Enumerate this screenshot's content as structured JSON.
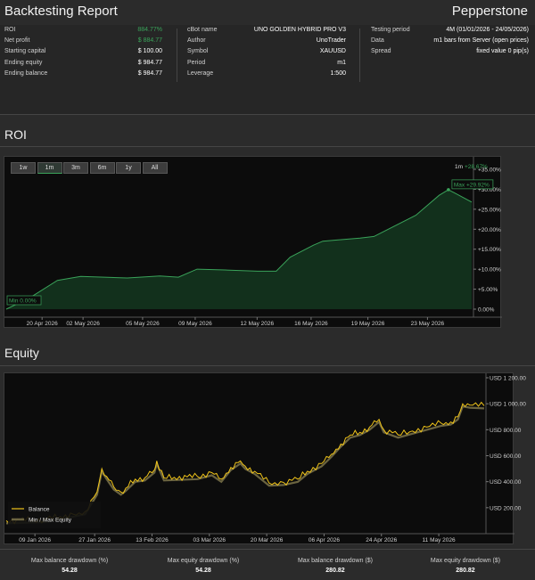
{
  "header": {
    "title": "Backtesting Report",
    "brand": "Pepperstone"
  },
  "stats": {
    "left": [
      {
        "label": "ROI",
        "value": "884.77%",
        "highlight": true
      },
      {
        "label": "Net profit",
        "value": "$ 884.77",
        "highlight": true
      },
      {
        "label": "Starting capital",
        "value": "$ 100.00"
      },
      {
        "label": "Ending equity",
        "value": "$ 984.77"
      },
      {
        "label": "Ending balance",
        "value": "$ 984.77"
      }
    ],
    "middle": [
      {
        "label": "cBot name",
        "value": "UNO GOLDEN HYBRID PRO V3"
      },
      {
        "label": "Author",
        "value": "UnoTrader"
      },
      {
        "label": "Symbol",
        "value": "XAUUSD"
      },
      {
        "label": "Period",
        "value": "m1"
      },
      {
        "label": "Leverage",
        "value": "1:500"
      }
    ],
    "right": [
      {
        "label": "Testing period",
        "value": "4M (01/01/2026 - 24/05/2026)"
      },
      {
        "label": "Data",
        "value": "m1 bars from Server (open prices)"
      },
      {
        "label": "Spread",
        "value": "fixed value 0 pip(s)"
      }
    ]
  },
  "roi": {
    "title": "ROI",
    "range_buttons": [
      "1w",
      "1m",
      "3m",
      "6m",
      "1y",
      "All"
    ],
    "active_range": "1m",
    "range_readout": "1m",
    "range_readout_value": "+28.67%",
    "min_label": "Min 0.00%",
    "max_label": "Max +29.92%",
    "colors": {
      "line": "#3aa35a",
      "fill": "#12301c"
    },
    "chart_data": {
      "type": "area",
      "x_ticks": [
        "20 Apr 2026",
        "02 May 2026",
        "05 May 2026",
        "09 May 2026",
        "12 May 2026",
        "16 May 2026",
        "19 May 2026",
        "23 May 2026"
      ],
      "y_ticks": [
        "+35.00%",
        "+30.00%",
        "+25.00%",
        "+20.00%",
        "+15.00%",
        "+10.00%",
        "+5.00%",
        "0.00%"
      ],
      "ylim": [
        0,
        35
      ],
      "xlim": [
        0,
        1
      ],
      "points": [
        [
          0.0,
          0.0
        ],
        [
          0.05,
          2.8
        ],
        [
          0.11,
          7.2
        ],
        [
          0.16,
          8.2
        ],
        [
          0.26,
          7.8
        ],
        [
          0.33,
          8.3
        ],
        [
          0.37,
          8.0
        ],
        [
          0.41,
          10.0
        ],
        [
          0.47,
          9.8
        ],
        [
          0.54,
          9.5
        ],
        [
          0.58,
          9.5
        ],
        [
          0.61,
          13.0
        ],
        [
          0.66,
          16.0
        ],
        [
          0.68,
          17.0
        ],
        [
          0.76,
          17.8
        ],
        [
          0.79,
          18.2
        ],
        [
          0.88,
          23.5
        ],
        [
          0.93,
          28.5
        ],
        [
          0.95,
          29.9
        ],
        [
          1.0,
          26.8
        ]
      ]
    }
  },
  "equity": {
    "title": "Equity",
    "legend": [
      {
        "name": "Balance",
        "color": "#f0c419"
      },
      {
        "name": "Min / Max Equity",
        "color": "#6b6440"
      }
    ],
    "chart_data": {
      "type": "line",
      "x_ticks": [
        "09 Jan 2026",
        "27 Jan 2026",
        "13 Feb 2026",
        "03 Mar 2026",
        "20 Mar 2026",
        "06 Apr 2026",
        "24 Apr 2026",
        "11 May 2026"
      ],
      "y_ticks": [
        "USD 1 200.00",
        "USD 1 000.00",
        "USD 800.00",
        "USD 600.00",
        "USD 400.00",
        "USD 200.00"
      ],
      "ylim": [
        0,
        1200
      ],
      "xlim": [
        0,
        1
      ],
      "series": [
        {
          "name": "Balance",
          "points": [
            [
              0.0,
              100
            ],
            [
              0.08,
              110
            ],
            [
              0.14,
              150
            ],
            [
              0.165,
              170
            ],
            [
              0.19,
              320
            ],
            [
              0.2,
              500
            ],
            [
              0.21,
              440
            ],
            [
              0.225,
              360
            ],
            [
              0.24,
              320
            ],
            [
              0.25,
              350
            ],
            [
              0.27,
              420
            ],
            [
              0.29,
              430
            ],
            [
              0.31,
              490
            ],
            [
              0.315,
              560
            ],
            [
              0.33,
              430
            ],
            [
              0.4,
              440
            ],
            [
              0.43,
              470
            ],
            [
              0.45,
              420
            ],
            [
              0.47,
              510
            ],
            [
              0.49,
              560
            ],
            [
              0.5,
              520
            ],
            [
              0.52,
              480
            ],
            [
              0.55,
              390
            ],
            [
              0.58,
              395
            ],
            [
              0.61,
              420
            ],
            [
              0.63,
              480
            ],
            [
              0.66,
              540
            ],
            [
              0.68,
              610
            ],
            [
              0.7,
              690
            ],
            [
              0.72,
              760
            ],
            [
              0.74,
              780
            ],
            [
              0.76,
              820
            ],
            [
              0.78,
              880
            ],
            [
              0.79,
              800
            ],
            [
              0.82,
              760
            ],
            [
              0.85,
              790
            ],
            [
              0.88,
              820
            ],
            [
              0.91,
              850
            ],
            [
              0.93,
              860
            ],
            [
              0.945,
              900
            ],
            [
              0.955,
              1000
            ],
            [
              0.97,
              990
            ],
            [
              1.0,
              985
            ]
          ]
        }
      ]
    }
  },
  "drawdowns": [
    {
      "label": "Max balance drawdown (%)",
      "value": "54.28"
    },
    {
      "label": "Max equity drawdown (%)",
      "value": "54.28"
    },
    {
      "label": "Max balance drawdown ($)",
      "value": "280.82"
    },
    {
      "label": "Max equity drawdown ($)",
      "value": "280.82"
    }
  ]
}
